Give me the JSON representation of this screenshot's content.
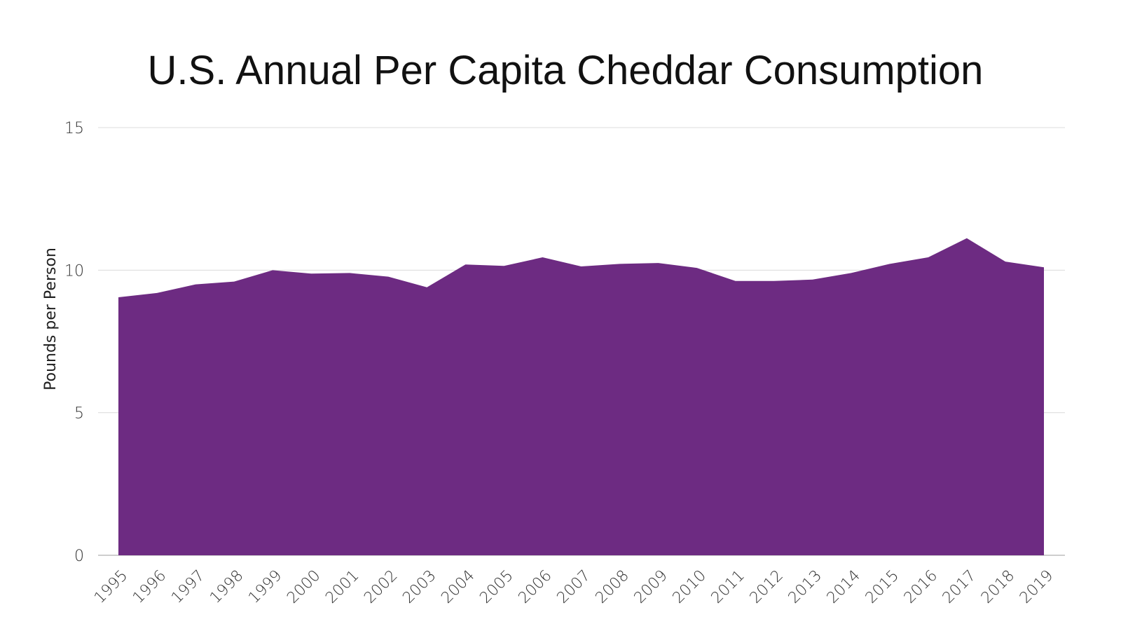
{
  "chart_data": {
    "type": "area",
    "title": "U.S. Annual Per Capita Cheddar Consumption",
    "xlabel": "",
    "ylabel": "Pounds per Person",
    "ylim": [
      0,
      15
    ],
    "yticks": [
      0,
      5,
      10,
      15
    ],
    "grid": true,
    "legend": "none",
    "color": "#6d2b82",
    "categories": [
      "1995",
      "1996",
      "1997",
      "1998",
      "1999",
      "2000",
      "2001",
      "2002",
      "2003",
      "2004",
      "2005",
      "2006",
      "2007",
      "2008",
      "2009",
      "2010",
      "2011",
      "2012",
      "2013",
      "2014",
      "2015",
      "2016",
      "2017",
      "2018",
      "2019"
    ],
    "values": [
      9.05,
      9.2,
      9.5,
      9.6,
      10.0,
      9.88,
      9.9,
      9.77,
      9.4,
      10.2,
      10.15,
      10.45,
      10.13,
      10.22,
      10.25,
      10.08,
      9.62,
      9.62,
      9.67,
      9.9,
      10.22,
      10.45,
      11.12,
      10.3,
      10.1
    ]
  }
}
